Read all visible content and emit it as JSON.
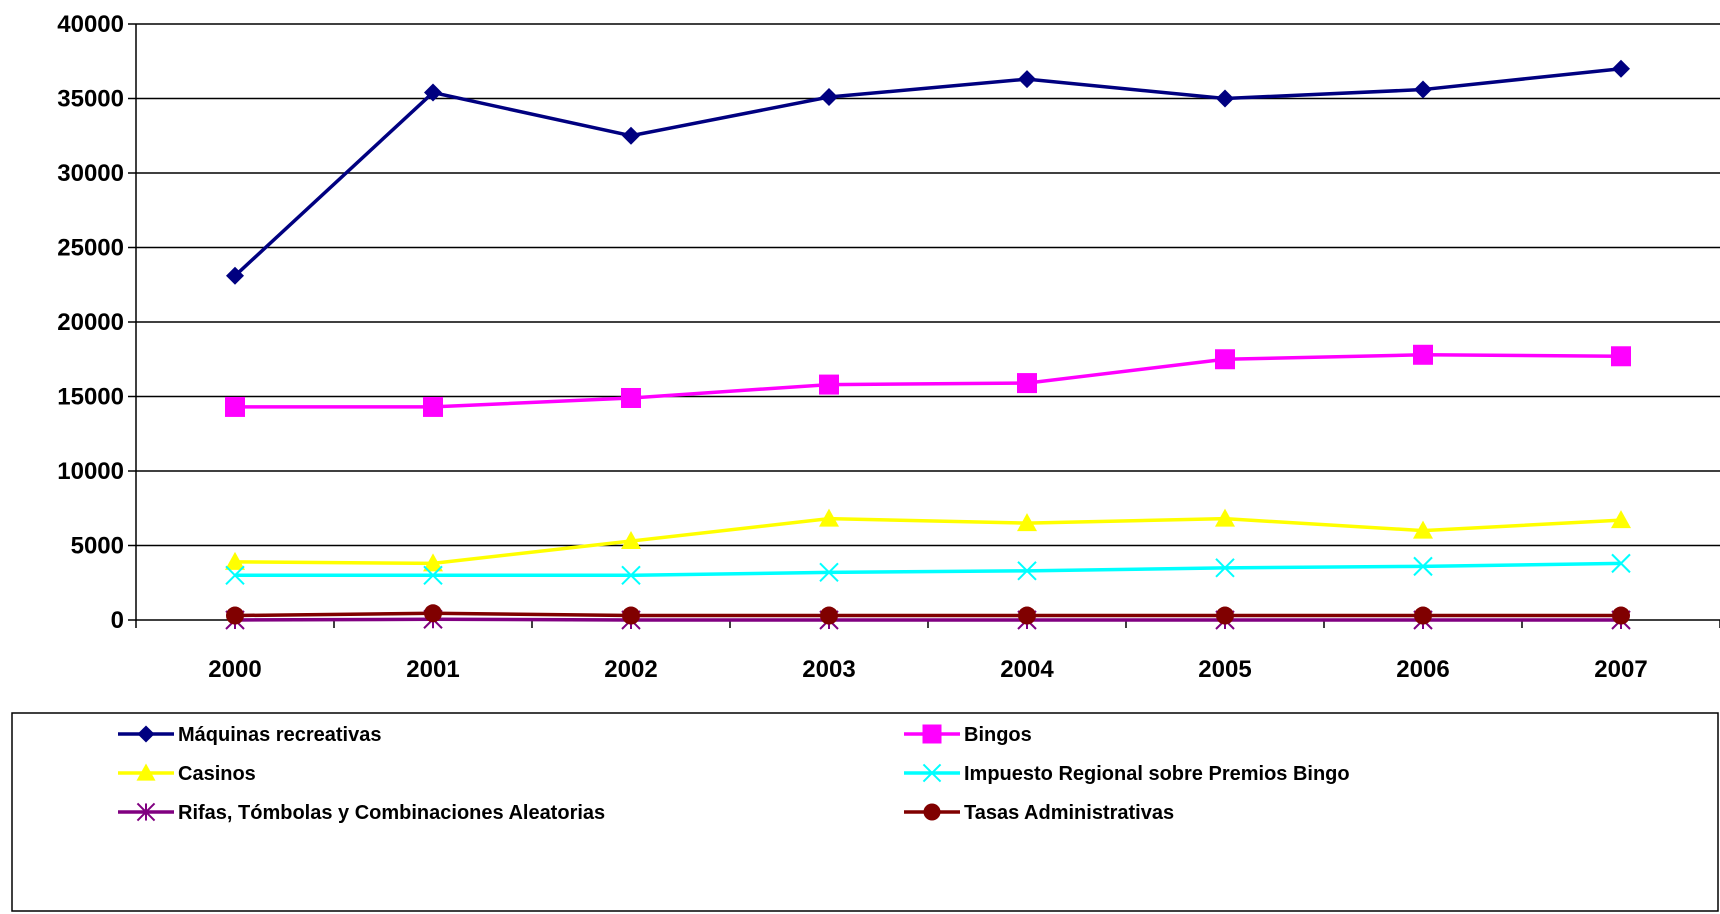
{
  "chart_data": {
    "type": "line",
    "categories": [
      "2000",
      "2001",
      "2002",
      "2003",
      "2004",
      "2005",
      "2006",
      "2007"
    ],
    "ylim": [
      0,
      40000
    ],
    "yticks": [
      0,
      5000,
      10000,
      15000,
      20000,
      25000,
      30000,
      35000,
      40000
    ],
    "ytick_labels": [
      "0",
      "5000",
      "10000",
      "15000",
      "20000",
      "25000",
      "30000",
      "35000",
      "40000"
    ],
    "grid": true,
    "legend_position": "bottom",
    "series": [
      {
        "name": "Máquinas recreativas",
        "color": "#000080",
        "marker": "diamond",
        "values": [
          23100,
          35400,
          32500,
          35100,
          36300,
          35000,
          35600,
          37000
        ]
      },
      {
        "name": "Bingos",
        "color": "#FF00FF",
        "marker": "square",
        "values": [
          14300,
          14300,
          14900,
          15800,
          15900,
          17500,
          17800,
          17700
        ]
      },
      {
        "name": "Casinos",
        "color": "#FFFF00",
        "marker": "triangle",
        "values": [
          3900,
          3800,
          5300,
          6800,
          6500,
          6800,
          6000,
          6700
        ]
      },
      {
        "name": "Impuesto Regional sobre Premios Bingo",
        "color": "#00FFFF",
        "marker": "x",
        "values": [
          3000,
          3000,
          3000,
          3200,
          3300,
          3500,
          3600,
          3800
        ]
      },
      {
        "name": "Rifas, Tómbolas y Combinaciones Aleatorias",
        "color": "#800080",
        "marker": "star",
        "values": [
          0,
          50,
          0,
          0,
          0,
          0,
          0,
          0
        ]
      },
      {
        "name": "Tasas Administrativas",
        "color": "#800000",
        "marker": "circle",
        "values": [
          300,
          450,
          300,
          300,
          300,
          300,
          300,
          300
        ]
      }
    ]
  }
}
